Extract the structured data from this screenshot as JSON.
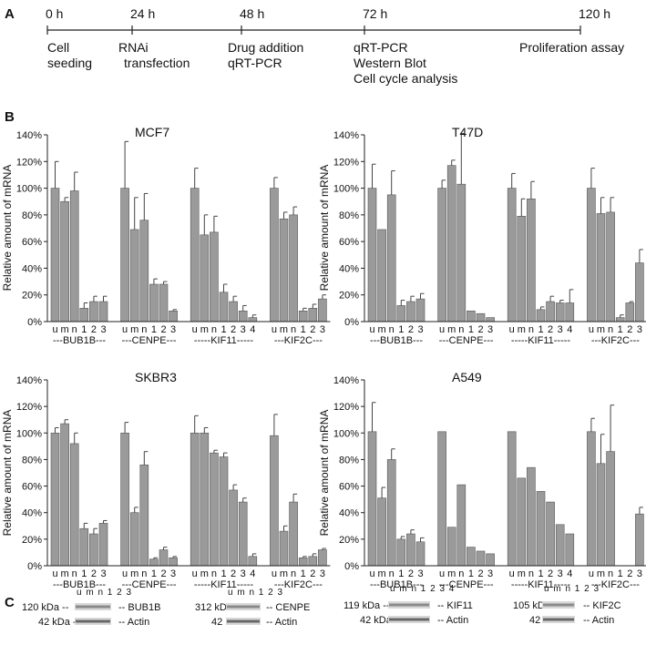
{
  "panels": {
    "a": "A",
    "b": "B",
    "c": "C"
  },
  "timeline": [
    {
      "time": "0 h",
      "lines": [
        "Cell",
        "seeding"
      ]
    },
    {
      "time": "24 h",
      "lines": [
        "RNAi",
        "transfection"
      ]
    },
    {
      "time": "48 h",
      "lines": [
        "Drug addition",
        "qRT-PCR"
      ]
    },
    {
      "time": "72 h",
      "lines": [
        "qRT-PCR",
        "Western Blot",
        "Cell cycle analysis"
      ]
    },
    {
      "time": "120 h",
      "lines": [
        "Proliferation assay"
      ]
    }
  ],
  "chart_data": [
    {
      "type": "bar",
      "title": "MCF7",
      "ylabel": "Relative amount of mRNA",
      "ylim": [
        0,
        140
      ],
      "yticks": [
        "0%",
        "20%",
        "40%",
        "60%",
        "80%",
        "100%",
        "120%",
        "140%"
      ],
      "groups": [
        {
          "name": "---BUB1B---",
          "labels": [
            "u",
            "m",
            "n",
            "1",
            "2",
            "3"
          ],
          "values": [
            100,
            90,
            98,
            10,
            15,
            15
          ],
          "errors": [
            20,
            3,
            14,
            4,
            4,
            4
          ]
        },
        {
          "name": "---CENPE---",
          "labels": [
            "u",
            "m",
            "n",
            "1",
            "2",
            "3"
          ],
          "values": [
            100,
            69,
            76,
            28,
            28,
            8
          ],
          "errors": [
            35,
            24,
            20,
            4,
            2,
            1
          ]
        },
        {
          "name": "-----KIF11-----",
          "labels": [
            "u",
            "m",
            "n",
            "1",
            "2",
            "3",
            "4"
          ],
          "values": [
            100,
            65,
            67,
            22,
            15,
            8,
            3
          ],
          "errors": [
            15,
            15,
            12,
            6,
            4,
            4,
            2
          ]
        },
        {
          "name": "---KIF2C---",
          "labels": [
            "u",
            "m",
            "n",
            "1",
            "2",
            "3"
          ],
          "values": [
            100,
            77,
            80,
            8,
            10,
            17
          ],
          "errors": [
            8,
            5,
            6,
            2,
            3,
            3
          ]
        }
      ]
    },
    {
      "type": "bar",
      "title": "T47D",
      "ylabel": "Relative amount of mRNA",
      "ylim": [
        0,
        140
      ],
      "yticks": [
        "0%",
        "20%",
        "40%",
        "60%",
        "80%",
        "100%",
        "120%",
        "140%"
      ],
      "groups": [
        {
          "name": "---BUB1B---",
          "labels": [
            "u",
            "m",
            "n",
            "1",
            "2",
            "3"
          ],
          "values": [
            100,
            69,
            95,
            12,
            15,
            17
          ],
          "errors": [
            18,
            0,
            18,
            4,
            4,
            4
          ]
        },
        {
          "name": "---CENPE---",
          "labels": [
            "u",
            "m",
            "n",
            "1",
            "2",
            "3"
          ],
          "values": [
            100,
            117,
            103,
            8,
            6,
            3
          ],
          "errors": [
            6,
            4,
            38,
            0,
            0,
            0
          ]
        },
        {
          "name": "-----KIF11-----",
          "labels": [
            "u",
            "m",
            "n",
            "1",
            "2",
            "3",
            "4"
          ],
          "values": [
            100,
            79,
            92,
            9,
            15,
            14,
            14
          ],
          "errors": [
            11,
            13,
            13,
            2,
            4,
            2,
            10
          ]
        },
        {
          "name": "---KIF2C---",
          "labels": [
            "u",
            "m",
            "n",
            "1",
            "2",
            "3"
          ],
          "values": [
            100,
            81,
            82,
            3,
            14,
            44
          ],
          "errors": [
            15,
            12,
            11,
            2,
            1,
            10
          ]
        }
      ]
    },
    {
      "type": "bar",
      "title": "SKBR3",
      "ylabel": "Relative amount of mRNA",
      "ylim": [
        0,
        140
      ],
      "yticks": [
        "0%",
        "20%",
        "40%",
        "60%",
        "80%",
        "100%",
        "120%",
        "140%"
      ],
      "groups": [
        {
          "name": "---BUB1B---",
          "labels": [
            "u",
            "m",
            "n",
            "1",
            "2",
            "3"
          ],
          "values": [
            100,
            107,
            92,
            28,
            24,
            32
          ],
          "errors": [
            4,
            3,
            8,
            4,
            4,
            2
          ]
        },
        {
          "name": "---CENPE---",
          "labels": [
            "u",
            "m",
            "n",
            "1",
            "2",
            "3"
          ],
          "values": [
            100,
            40,
            76,
            5,
            12,
            6
          ],
          "errors": [
            8,
            4,
            10,
            1,
            2,
            1
          ]
        },
        {
          "name": "-----KIF11-----",
          "labels": [
            "u",
            "m",
            "n",
            "1",
            "2",
            "3",
            "4"
          ],
          "values": [
            100,
            100,
            85,
            82,
            57,
            48,
            7
          ],
          "errors": [
            13,
            4,
            2,
            3,
            4,
            3,
            2
          ]
        },
        {
          "name": "---KIF2C---",
          "labels": [
            "u",
            "m",
            "n",
            "1",
            "2",
            "3"
          ],
          "values": [
            98,
            26,
            48,
            6,
            7,
            12
          ],
          "errors": [
            16,
            4,
            6,
            1,
            2,
            1
          ]
        }
      ]
    },
    {
      "type": "bar",
      "title": "A549",
      "ylabel": "Relative amount of mRNA",
      "ylim": [
        0,
        140
      ],
      "yticks": [
        "0%",
        "20%",
        "40%",
        "60%",
        "80%",
        "100%",
        "120%",
        "140%"
      ],
      "groups": [
        {
          "name": "---BUB1B---",
          "labels": [
            "u",
            "m",
            "n",
            "1",
            "2",
            "3"
          ],
          "values": [
            101,
            51,
            80,
            20,
            24,
            18
          ],
          "errors": [
            22,
            8,
            8,
            2,
            3,
            3
          ]
        },
        {
          "name": "---CENPE---",
          "labels": [
            "u",
            "m",
            "n",
            "1",
            "2",
            "3"
          ],
          "values": [
            101,
            29,
            61,
            14,
            11,
            9
          ],
          "errors": [
            0,
            0,
            0,
            0,
            0,
            0
          ]
        },
        {
          "name": "-----KIF11-----",
          "labels": [
            "u",
            "m",
            "n",
            "1",
            "2",
            "3",
            "4"
          ],
          "values": [
            101,
            66,
            74,
            56,
            48,
            31,
            24
          ],
          "errors": [
            0,
            0,
            0,
            0,
            0,
            0,
            0
          ]
        },
        {
          "name": "---KIF2C---",
          "labels": [
            "u",
            "m",
            "n",
            "1",
            "2",
            "3"
          ],
          "values": [
            101,
            77,
            86,
            0,
            0,
            39
          ],
          "errors": [
            10,
            22,
            35,
            0,
            0,
            5
          ]
        }
      ]
    }
  ],
  "blots": [
    {
      "lane_labels": "u m n 1 2 3",
      "target_kda": "120 kDa",
      "target": "BUB1B",
      "actin_kda": "42 kDa",
      "actin": "Actin"
    },
    {
      "lane_labels": "u m n 1 2 3",
      "target_kda": "312 kDa",
      "target": "CENPE",
      "actin_kda": "42 kDa",
      "actin": "Actin"
    },
    {
      "lane_labels": "u m n 1 2 3 4",
      "target_kda": "119 kDa",
      "target": "KIF11",
      "actin_kda": "42 kDa",
      "actin": "Actin"
    },
    {
      "lane_labels": "u m n 1 2 3",
      "target_kda": "105 kDa",
      "target": "KIF2C",
      "actin_kda": "42 kDa",
      "actin": "Actin"
    }
  ],
  "colors": {
    "bar": "#9a9a9a",
    "bar_stroke": "#555555",
    "axis": "#222222",
    "band": "#777777"
  }
}
